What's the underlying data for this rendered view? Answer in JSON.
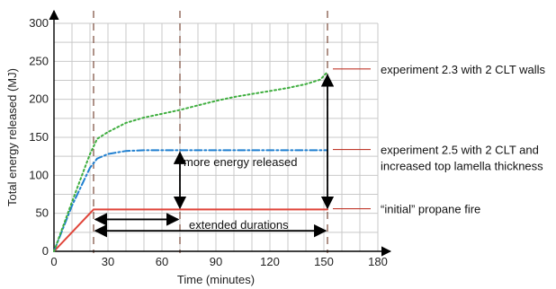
{
  "chart_data": {
    "type": "line",
    "xlabel": "Time (minutes)",
    "ylabel": "Total energy released (MJ)",
    "xlim": [
      0,
      180
    ],
    "ylim": [
      0,
      300
    ],
    "x_ticks": [
      0,
      30,
      60,
      90,
      120,
      150,
      180
    ],
    "y_ticks": [
      0,
      50,
      100,
      150,
      200,
      250,
      300
    ],
    "grid": true,
    "vertical_markers": [
      22,
      70,
      152
    ],
    "series": [
      {
        "color": "#e0453a",
        "style": "solid",
        "points": [
          [
            0,
            0
          ],
          [
            22,
            55
          ],
          [
            152,
            55
          ]
        ]
      },
      {
        "color": "#1f7fd0",
        "style": "dash-dot",
        "points": [
          [
            0,
            0
          ],
          [
            10,
            60
          ],
          [
            20,
            110
          ],
          [
            24,
            122
          ],
          [
            30,
            128
          ],
          [
            40,
            132
          ],
          [
            50,
            133
          ],
          [
            70,
            133
          ],
          [
            100,
            133
          ],
          [
            130,
            133
          ],
          [
            152,
            133
          ]
        ]
      },
      {
        "color": "#3fae3f",
        "style": "dotted",
        "points": [
          [
            0,
            0
          ],
          [
            10,
            65
          ],
          [
            20,
            128
          ],
          [
            24,
            148
          ],
          [
            30,
            157
          ],
          [
            40,
            169
          ],
          [
            50,
            176
          ],
          [
            60,
            181
          ],
          [
            70,
            186
          ],
          [
            80,
            192
          ],
          [
            90,
            198
          ],
          [
            100,
            203
          ],
          [
            110,
            207
          ],
          [
            120,
            211
          ],
          [
            130,
            215
          ],
          [
            140,
            220
          ],
          [
            148,
            226
          ],
          [
            152,
            236
          ]
        ]
      }
    ],
    "annotations": {
      "exp23": "experiment 2.3 with 2 CLT walls",
      "exp25_line1": "experiment 2.5 with 2 CLT and",
      "exp25_line2": "increased top lamella thickness",
      "initial": "“initial” propane fire",
      "more_energy": "more energy released",
      "extended": "extended durations"
    }
  }
}
